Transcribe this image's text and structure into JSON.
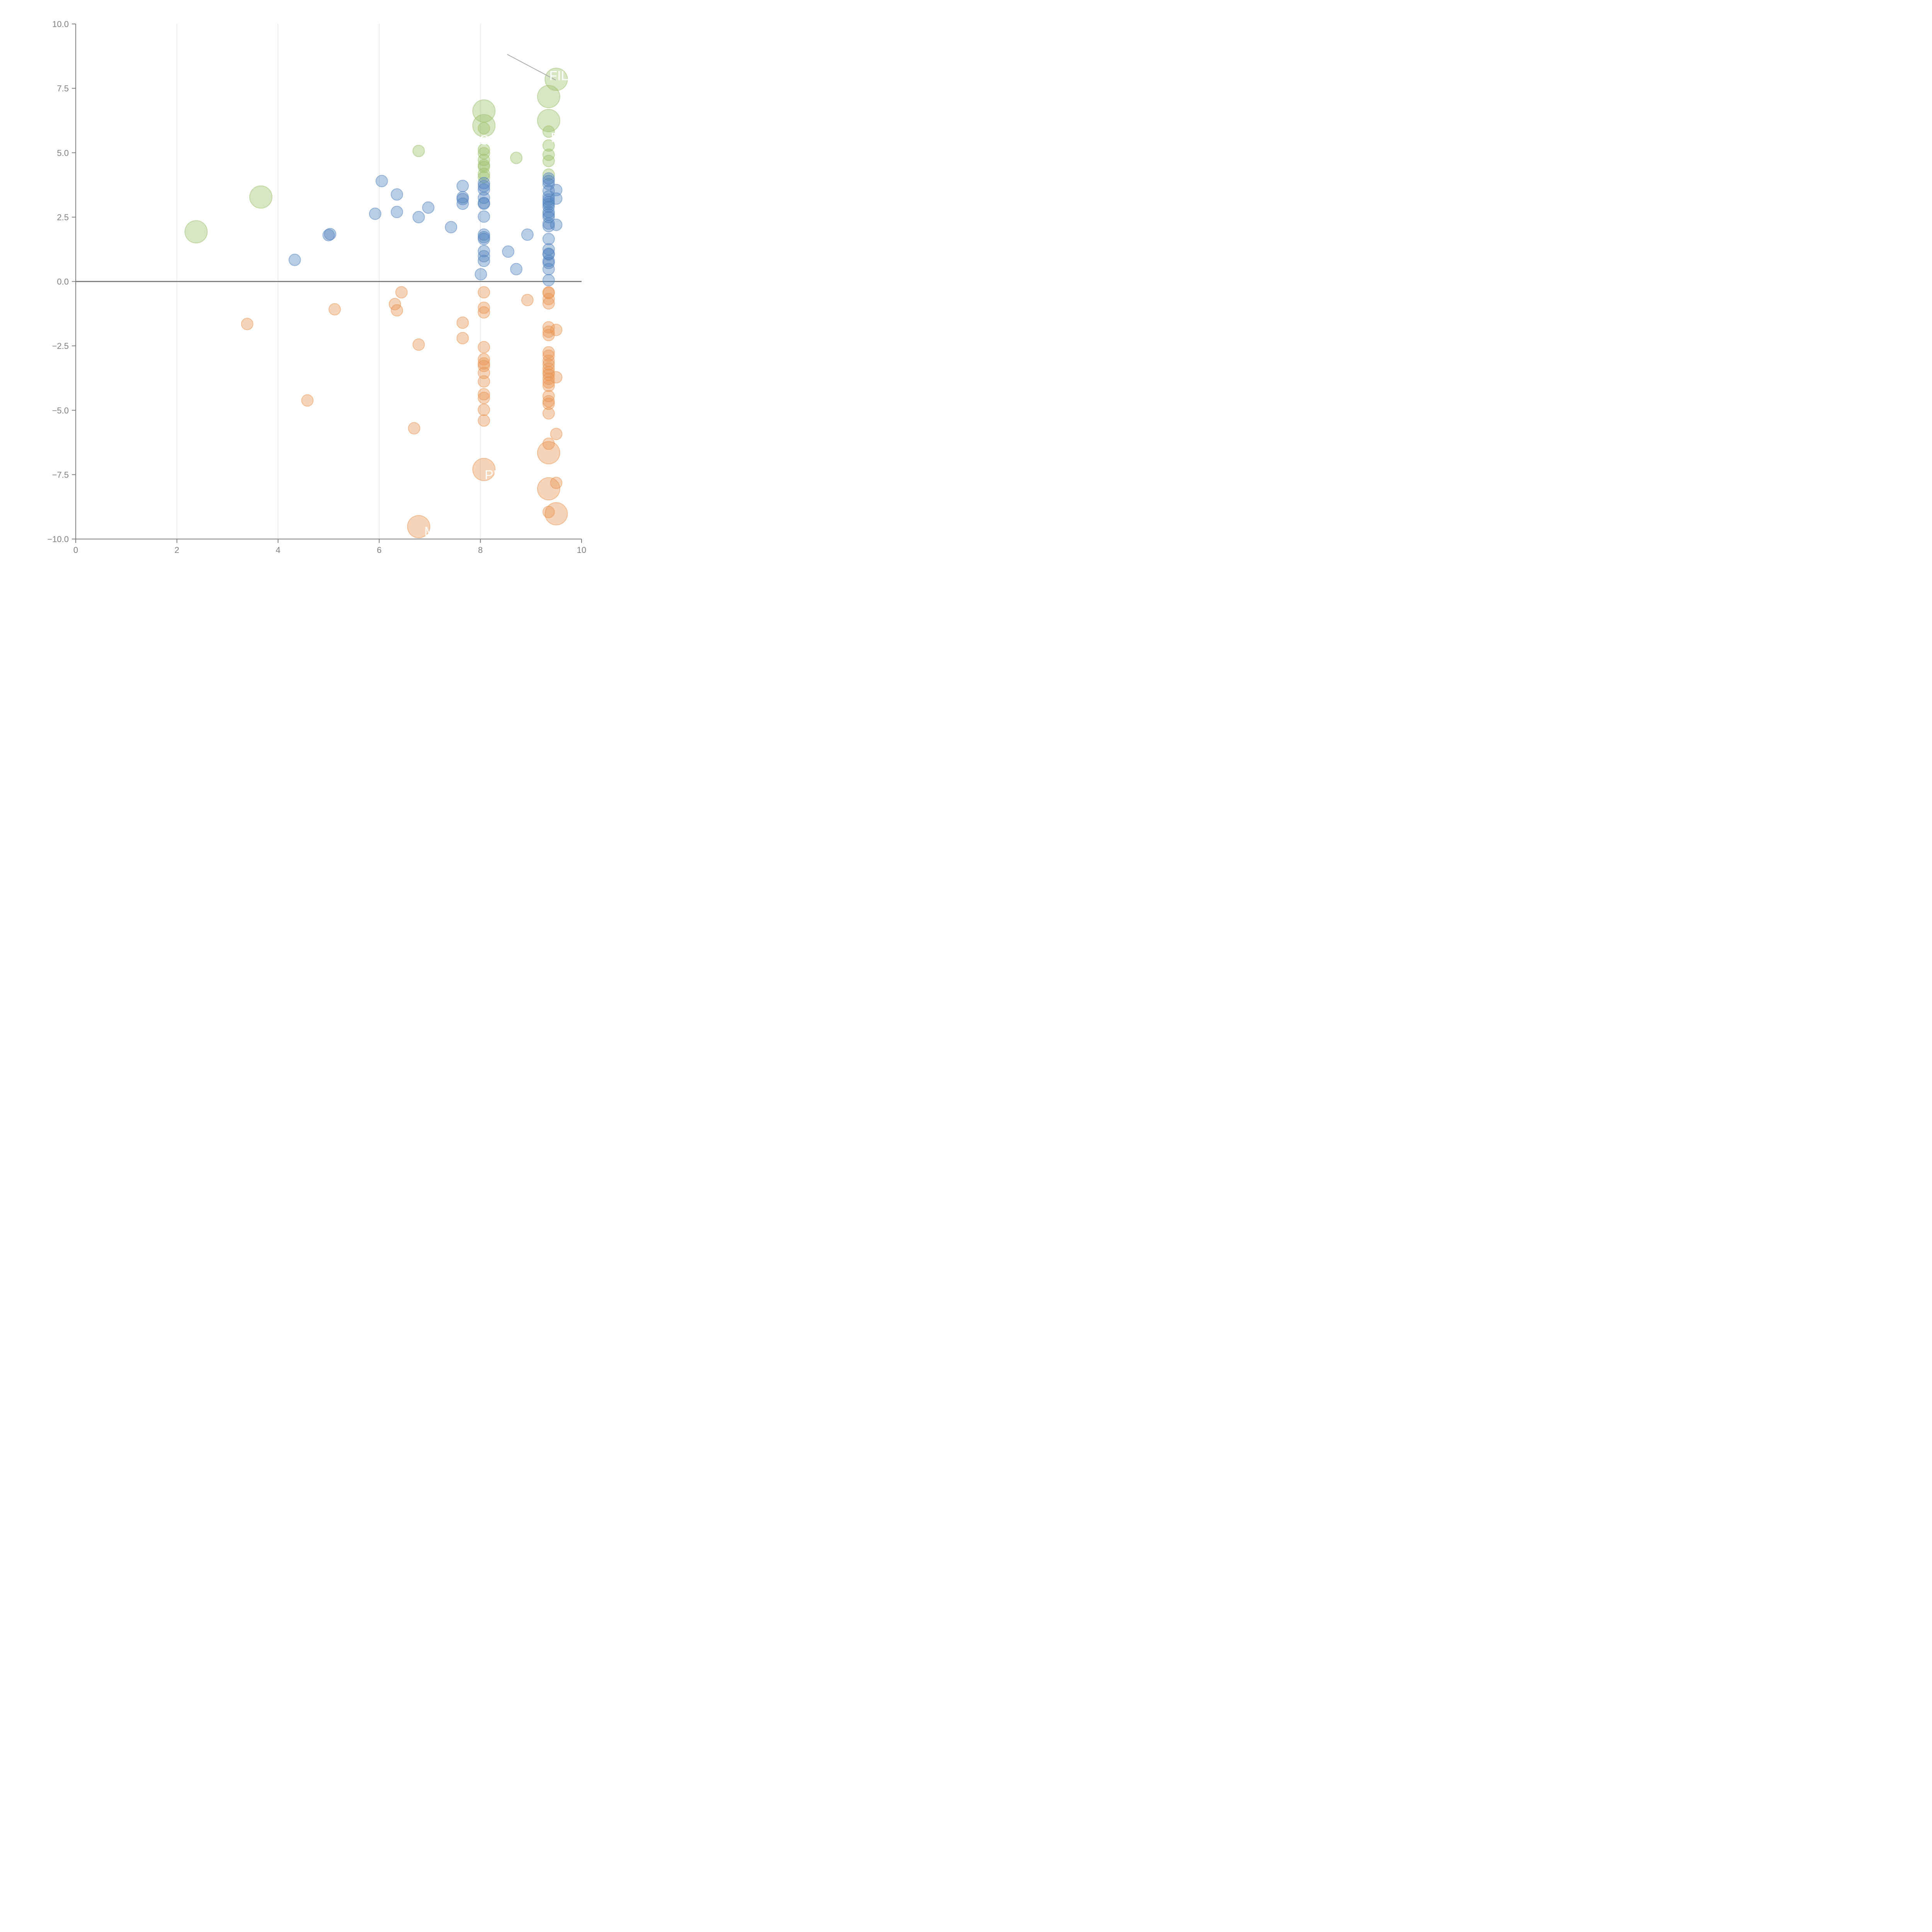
{
  "chart_data": {
    "type": "scatter",
    "title": "",
    "xlabel": "",
    "ylabel": "",
    "xlim": [
      0,
      10
    ],
    "ylim": [
      -10,
      10
    ],
    "grid": "vertical",
    "zero_line": true,
    "legend": "none",
    "x_ticks": [
      "0",
      "2",
      "4",
      "6",
      "8",
      "10"
    ],
    "y_ticks": [
      "10.0",
      "7.5",
      "5.0",
      "2.5",
      "0.0",
      "−2.5",
      "−5.0",
      "−7.5",
      "−10.0"
    ],
    "x_tick_values": [
      0,
      2,
      4,
      6,
      8,
      10
    ],
    "y_tick_values": [
      10,
      7.5,
      5,
      2.5,
      0,
      -2.5,
      -5,
      -7.5,
      -10
    ],
    "colors": {
      "green": "#9bc06a",
      "blue": "#4f81bd",
      "orange": "#e8944f"
    },
    "series": [
      {
        "name": "green",
        "color": "#9bc06a",
        "points": [
          {
            "x": 2.38,
            "y": 1.93,
            "size": "large"
          },
          {
            "x": 3.66,
            "y": 3.28,
            "size": "large"
          },
          {
            "x": 6.78,
            "y": 5.07,
            "size": "small"
          },
          {
            "x": 8.07,
            "y": 6.62,
            "size": "large"
          },
          {
            "x": 8.07,
            "y": 6.05,
            "size": "large"
          },
          {
            "x": 8.07,
            "y": 5.95,
            "size": "small"
          },
          {
            "x": 8.07,
            "y": 5.12,
            "size": "small"
          },
          {
            "x": 8.07,
            "y": 4.98,
            "size": "small"
          },
          {
            "x": 8.07,
            "y": 4.72,
            "size": "small"
          },
          {
            "x": 8.07,
            "y": 4.52,
            "size": "small"
          },
          {
            "x": 8.07,
            "y": 4.45,
            "size": "small"
          },
          {
            "x": 8.07,
            "y": 4.18,
            "size": "small"
          },
          {
            "x": 8.07,
            "y": 4.05,
            "size": "small"
          },
          {
            "x": 8.71,
            "y": 4.8,
            "size": "small"
          },
          {
            "x": 9.35,
            "y": 7.18,
            "size": "large"
          },
          {
            "x": 9.5,
            "y": 7.85,
            "size": "large"
          },
          {
            "x": 9.35,
            "y": 6.25,
            "size": "large"
          },
          {
            "x": 9.35,
            "y": 5.82,
            "size": "small"
          },
          {
            "x": 9.35,
            "y": 5.28,
            "size": "small"
          },
          {
            "x": 9.35,
            "y": 4.92,
            "size": "small"
          },
          {
            "x": 9.35,
            "y": 4.68,
            "size": "small"
          },
          {
            "x": 9.35,
            "y": 4.15,
            "size": "small"
          }
        ]
      },
      {
        "name": "blue",
        "color": "#4f81bd",
        "points": [
          {
            "x": 4.33,
            "y": 0.84
          },
          {
            "x": 5.0,
            "y": 1.8
          },
          {
            "x": 5.03,
            "y": 1.84
          },
          {
            "x": 5.92,
            "y": 2.63
          },
          {
            "x": 6.05,
            "y": 3.9
          },
          {
            "x": 6.35,
            "y": 3.38
          },
          {
            "x": 6.35,
            "y": 2.7
          },
          {
            "x": 6.78,
            "y": 2.5
          },
          {
            "x": 6.97,
            "y": 2.87
          },
          {
            "x": 7.42,
            "y": 2.11
          },
          {
            "x": 7.65,
            "y": 3.71
          },
          {
            "x": 7.65,
            "y": 3.27
          },
          {
            "x": 7.65,
            "y": 3.2
          },
          {
            "x": 7.65,
            "y": 3.02
          },
          {
            "x": 8.01,
            "y": 0.28
          },
          {
            "x": 8.07,
            "y": 3.82
          },
          {
            "x": 8.07,
            "y": 3.7
          },
          {
            "x": 8.07,
            "y": 3.57
          },
          {
            "x": 8.07,
            "y": 3.25
          },
          {
            "x": 8.07,
            "y": 3.05
          },
          {
            "x": 8.07,
            "y": 3.02
          },
          {
            "x": 8.07,
            "y": 2.52
          },
          {
            "x": 8.07,
            "y": 1.82
          },
          {
            "x": 8.07,
            "y": 1.72
          },
          {
            "x": 8.07,
            "y": 1.65
          },
          {
            "x": 8.07,
            "y": 1.18
          },
          {
            "x": 8.07,
            "y": 0.98
          },
          {
            "x": 8.07,
            "y": 0.8
          },
          {
            "x": 8.55,
            "y": 1.16
          },
          {
            "x": 8.71,
            "y": 0.48
          },
          {
            "x": 8.93,
            "y": 1.82
          },
          {
            "x": 9.35,
            "y": 4.0
          },
          {
            "x": 9.35,
            "y": 3.9
          },
          {
            "x": 9.35,
            "y": 3.78
          },
          {
            "x": 9.35,
            "y": 3.52
          },
          {
            "x": 9.35,
            "y": 3.3
          },
          {
            "x": 9.35,
            "y": 3.18
          },
          {
            "x": 9.35,
            "y": 3.08
          },
          {
            "x": 9.35,
            "y": 3.0
          },
          {
            "x": 9.35,
            "y": 2.9
          },
          {
            "x": 9.35,
            "y": 2.7
          },
          {
            "x": 9.35,
            "y": 2.6
          },
          {
            "x": 9.35,
            "y": 2.5
          },
          {
            "x": 9.35,
            "y": 2.25
          },
          {
            "x": 9.35,
            "y": 2.15
          },
          {
            "x": 9.35,
            "y": 1.65
          },
          {
            "x": 9.35,
            "y": 1.25
          },
          {
            "x": 9.35,
            "y": 1.08
          },
          {
            "x": 9.35,
            "y": 1.05
          },
          {
            "x": 9.35,
            "y": 0.8
          },
          {
            "x": 9.35,
            "y": 0.72
          },
          {
            "x": 9.35,
            "y": 0.48
          },
          {
            "x": 9.35,
            "y": 0.05
          },
          {
            "x": 9.5,
            "y": 3.55
          },
          {
            "x": 9.5,
            "y": 3.22
          },
          {
            "x": 9.5,
            "y": 2.2
          }
        ]
      },
      {
        "name": "orange",
        "color": "#e8944f",
        "points": [
          {
            "x": 3.39,
            "y": -1.65,
            "size": "small"
          },
          {
            "x": 4.58,
            "y": -4.62,
            "size": "small"
          },
          {
            "x": 5.12,
            "y": -1.08,
            "size": "small"
          },
          {
            "x": 6.31,
            "y": -0.88,
            "size": "small"
          },
          {
            "x": 6.35,
            "y": -1.12,
            "size": "small"
          },
          {
            "x": 6.44,
            "y": -0.42,
            "size": "small"
          },
          {
            "x": 6.69,
            "y": -5.7,
            "size": "small"
          },
          {
            "x": 6.78,
            "y": -2.45,
            "size": "small"
          },
          {
            "x": 6.78,
            "y": -9.52,
            "size": "large"
          },
          {
            "x": 7.65,
            "y": -1.6,
            "size": "small"
          },
          {
            "x": 7.65,
            "y": -2.2,
            "size": "small"
          },
          {
            "x": 8.07,
            "y": -0.42,
            "size": "small"
          },
          {
            "x": 8.07,
            "y": -1.02,
            "size": "small"
          },
          {
            "x": 8.07,
            "y": -1.2,
            "size": "small"
          },
          {
            "x": 8.07,
            "y": -2.55,
            "size": "small"
          },
          {
            "x": 8.07,
            "y": -3.02,
            "size": "small"
          },
          {
            "x": 8.07,
            "y": -3.18,
            "size": "small"
          },
          {
            "x": 8.07,
            "y": -3.28,
            "size": "small"
          },
          {
            "x": 8.07,
            "y": -3.55,
            "size": "small"
          },
          {
            "x": 8.07,
            "y": -3.88,
            "size": "small"
          },
          {
            "x": 8.07,
            "y": -4.38,
            "size": "small"
          },
          {
            "x": 8.07,
            "y": -4.52,
            "size": "small"
          },
          {
            "x": 8.07,
            "y": -4.98,
            "size": "small"
          },
          {
            "x": 8.07,
            "y": -5.4,
            "size": "small"
          },
          {
            "x": 8.07,
            "y": -7.3,
            "size": "large"
          },
          {
            "x": 8.93,
            "y": -0.72,
            "size": "small"
          },
          {
            "x": 9.35,
            "y": -0.42,
            "size": "small"
          },
          {
            "x": 9.35,
            "y": -0.45,
            "size": "small"
          },
          {
            "x": 9.35,
            "y": -0.68,
            "size": "small"
          },
          {
            "x": 9.35,
            "y": -0.85,
            "size": "small"
          },
          {
            "x": 9.35,
            "y": -1.78,
            "size": "small"
          },
          {
            "x": 9.35,
            "y": -1.95,
            "size": "small"
          },
          {
            "x": 9.35,
            "y": -2.08,
            "size": "small"
          },
          {
            "x": 9.35,
            "y": -2.75,
            "size": "small"
          },
          {
            "x": 9.35,
            "y": -2.88,
            "size": "small"
          },
          {
            "x": 9.35,
            "y": -3.08,
            "size": "small"
          },
          {
            "x": 9.35,
            "y": -3.22,
            "size": "small"
          },
          {
            "x": 9.35,
            "y": -3.38,
            "size": "small"
          },
          {
            "x": 9.35,
            "y": -3.52,
            "size": "small"
          },
          {
            "x": 9.35,
            "y": -3.62,
            "size": "small"
          },
          {
            "x": 9.35,
            "y": -3.78,
            "size": "small"
          },
          {
            "x": 9.35,
            "y": -3.92,
            "size": "small"
          },
          {
            "x": 9.35,
            "y": -4.05,
            "size": "small"
          },
          {
            "x": 9.35,
            "y": -4.45,
            "size": "small"
          },
          {
            "x": 9.35,
            "y": -4.65,
            "size": "small"
          },
          {
            "x": 9.35,
            "y": -4.75,
            "size": "small"
          },
          {
            "x": 9.35,
            "y": -5.12,
            "size": "small"
          },
          {
            "x": 9.35,
            "y": -6.3,
            "size": "small"
          },
          {
            "x": 9.35,
            "y": -6.65,
            "size": "large"
          },
          {
            "x": 9.35,
            "y": -8.05,
            "size": "large"
          },
          {
            "x": 9.35,
            "y": -8.95,
            "size": "small"
          },
          {
            "x": 9.5,
            "y": -1.88,
            "size": "small"
          },
          {
            "x": 9.5,
            "y": -3.72,
            "size": "small"
          },
          {
            "x": 9.5,
            "y": -5.92,
            "size": "small"
          },
          {
            "x": 9.5,
            "y": -7.82,
            "size": "small"
          },
          {
            "x": 9.5,
            "y": -9.02,
            "size": "large"
          }
        ]
      }
    ],
    "annotations": [
      {
        "text": "FIL",
        "x": 9.55,
        "y": 8.0,
        "leader_from": [
          8.53,
          8.82
        ],
        "leader_to": [
          9.49,
          7.82
        ]
      },
      {
        "text": "P",
        "x": 9.48,
        "y": 5.6
      },
      {
        "text": "O",
        "x": 8.08,
        "y": 5.5
      },
      {
        "text": "L",
        "x": 2.72,
        "y": 2.1
      },
      {
        "text": "PF",
        "x": 8.25,
        "y": -7.5
      },
      {
        "text": "M",
        "x": 7.0,
        "y": -9.7
      }
    ]
  }
}
